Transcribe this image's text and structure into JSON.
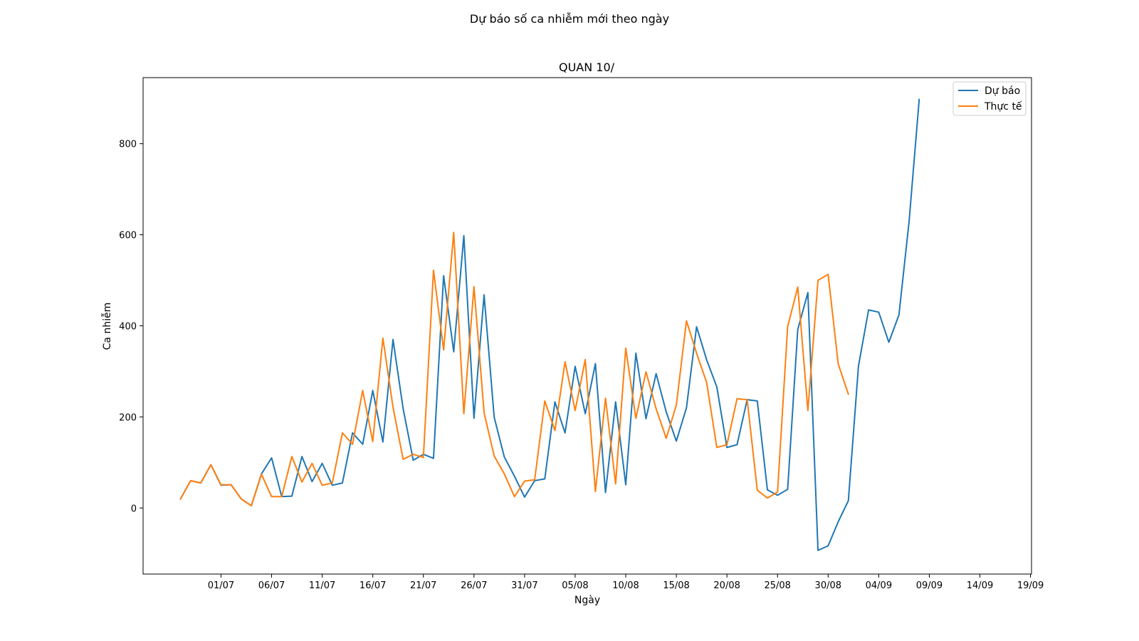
{
  "chart_data": {
    "type": "line",
    "suptitle": "Dự báo số ca nhiễm mới theo ngày",
    "title": "QUAN 10/",
    "xlabel": "Ngày",
    "ylabel": "Ca nhiễm",
    "x_start": "2021-06-27",
    "x_tick_labels": [
      "01/07",
      "06/07",
      "11/07",
      "16/07",
      "21/07",
      "26/07",
      "31/07",
      "05/08",
      "10/08",
      "15/08",
      "20/08",
      "25/08",
      "30/08",
      "04/09",
      "09/09",
      "14/09",
      "19/09"
    ],
    "x_ticks_day_index": [
      4,
      9,
      14,
      19,
      24,
      29,
      34,
      39,
      44,
      49,
      54,
      59,
      64,
      69,
      74,
      79,
      84
    ],
    "y_ticks": [
      0,
      200,
      400,
      600,
      800
    ],
    "xlim": [
      -3.7,
      84.1
    ],
    "ylim": [
      -145,
      945
    ],
    "legend_position": "top-right",
    "series": [
      {
        "name": "Dự báo",
        "color": "#1f77b4",
        "x_start_day_index": 0,
        "values": [
          20,
          60,
          55,
          95,
          50,
          51,
          20,
          5,
          75,
          110,
          25,
          26,
          113,
          58,
          98,
          50,
          55,
          165,
          140,
          258,
          145,
          370,
          218,
          105,
          118,
          109,
          510,
          343,
          598,
          197,
          468,
          199,
          112,
          70,
          24,
          60,
          64,
          233,
          165,
          311,
          207,
          317,
          34,
          233,
          51,
          340,
          196,
          295,
          211,
          147,
          220,
          398,
          325,
          266,
          133,
          139,
          238,
          235,
          40,
          28,
          41,
          392,
          473,
          -93,
          -83,
          -30,
          16,
          312,
          435,
          430,
          364,
          424,
          629,
          897
        ]
      },
      {
        "name": "Thực tế",
        "color": "#ff7f0e",
        "x_start_day_index": 0,
        "values": [
          20,
          60,
          55,
          95,
          51,
          51,
          20,
          5,
          74,
          25,
          25,
          113,
          57,
          98,
          50,
          55,
          165,
          140,
          258,
          146,
          373,
          221,
          107,
          118,
          111,
          522,
          347,
          605,
          207,
          486,
          209,
          114,
          75,
          25,
          59,
          62,
          235,
          170,
          321,
          214,
          326,
          36,
          241,
          53,
          351,
          197,
          299,
          218,
          153,
          226,
          411,
          340,
          275,
          133,
          139,
          240,
          238,
          39,
          22,
          35,
          398,
          485,
          214,
          500,
          513,
          316,
          250
        ]
      }
    ]
  }
}
